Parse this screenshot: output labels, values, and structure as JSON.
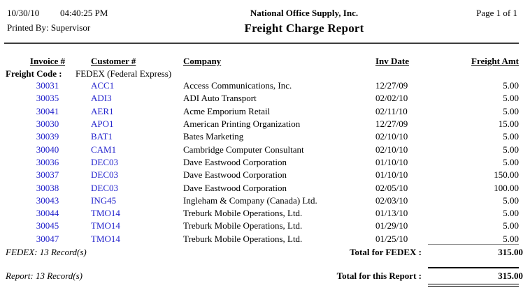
{
  "header": {
    "date": "10/30/10",
    "time": "04:40:25 PM",
    "printed_by": "Printed By: Supervisor",
    "company_name": "National Office Supply, Inc.",
    "report_title": "Freight Charge Report",
    "page_info": "Page 1 of 1"
  },
  "table": {
    "headers": {
      "invoice": "Invoice #",
      "customer": "Customer #",
      "company": "Company",
      "inv_date": "Inv Date",
      "freight_amt": "Freight Amt"
    },
    "group": {
      "label": "Freight Code :",
      "value": "FEDEX (Federal Express)"
    },
    "rows": [
      {
        "invoice": "30031",
        "customer": "ACC1",
        "company": "Access Communications, Inc.",
        "inv_date": "12/27/09",
        "amount": "5.00"
      },
      {
        "invoice": "30035",
        "customer": "ADI3",
        "company": "ADI Auto Transport",
        "inv_date": "02/02/10",
        "amount": "5.00"
      },
      {
        "invoice": "30041",
        "customer": "AER1",
        "company": "Acme Emporium Retail",
        "inv_date": "02/11/10",
        "amount": "5.00"
      },
      {
        "invoice": "30030",
        "customer": "APO1",
        "company": "American Printing Organization",
        "inv_date": "12/27/09",
        "amount": "15.00"
      },
      {
        "invoice": "30039",
        "customer": "BAT1",
        "company": "Bates Marketing",
        "inv_date": "02/10/10",
        "amount": "5.00"
      },
      {
        "invoice": "30040",
        "customer": "CAM1",
        "company": "Cambridge Computer Consultant",
        "inv_date": "02/10/10",
        "amount": "5.00"
      },
      {
        "invoice": "30036",
        "customer": "DEC03",
        "company": "Dave Eastwood Corporation",
        "inv_date": "01/10/10",
        "amount": "5.00"
      },
      {
        "invoice": "30037",
        "customer": "DEC03",
        "company": "Dave Eastwood Corporation",
        "inv_date": "01/10/10",
        "amount": "150.00"
      },
      {
        "invoice": "30038",
        "customer": "DEC03",
        "company": "Dave Eastwood Corporation",
        "inv_date": "02/05/10",
        "amount": "100.00"
      },
      {
        "invoice": "30043",
        "customer": "ING45",
        "company": "Ingleham & Company (Canada) Ltd.",
        "inv_date": "02/03/10",
        "amount": "5.00"
      },
      {
        "invoice": "30044",
        "customer": "TMO14",
        "company": "Treburk Mobile Operations, Ltd.",
        "inv_date": "01/13/10",
        "amount": "5.00"
      },
      {
        "invoice": "30045",
        "customer": "TMO14",
        "company": "Treburk Mobile Operations, Ltd.",
        "inv_date": "01/29/10",
        "amount": "5.00"
      },
      {
        "invoice": "30047",
        "customer": "TMO14",
        "company": "Treburk Mobile Operations, Ltd.",
        "inv_date": "01/25/10",
        "amount": "5.00"
      }
    ],
    "group_footer": {
      "record_count": "FEDEX: 13 Record(s)",
      "total_label": "Total for FEDEX :",
      "total_value": "315.00"
    },
    "report_footer": {
      "record_count": "Report: 13 Record(s)",
      "total_label": "Total for this Report :",
      "total_value": "315.00"
    }
  },
  "colors": {
    "link_blue": "#2222cc",
    "text": "#000000",
    "rule_gray": "#8a8a8a"
  }
}
